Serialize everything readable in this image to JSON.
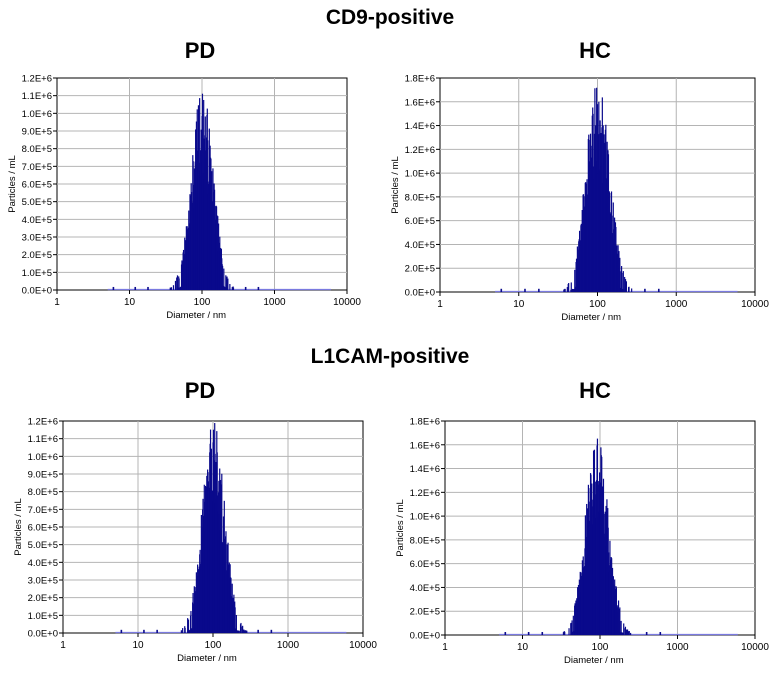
{
  "sections": [
    {
      "title": "CD9-positive"
    },
    {
      "title": "L1CAM-positive"
    }
  ],
  "colors": {
    "bar": "#0a0a8c",
    "grid": "#b4b4b4",
    "baseline": "#7a7ae0"
  },
  "chart_data": [
    {
      "type": "bar",
      "panel": "PD",
      "xlabel": "Diameter / nm",
      "ylabel": "Particles / mL",
      "xscale": "log",
      "xlim": [
        1,
        10000
      ],
      "xticks": [
        "1",
        "10",
        "100",
        "1000",
        "10000"
      ],
      "ylim": [
        0,
        1200000
      ],
      "yticks": [
        "0.0E+0",
        "1.0E+5",
        "2.0E+5",
        "3.0E+5",
        "4.0E+5",
        "5.0E+5",
        "6.0E+5",
        "7.0E+5",
        "8.0E+5",
        "9.0E+5",
        "1.0E+6",
        "1.1E+6",
        "1.2E+6"
      ],
      "grid": true,
      "distribution": {
        "peak_diameter_nm": 100,
        "peak_value": 1150000,
        "line_range_nm": [
          5,
          6000
        ]
      }
    },
    {
      "type": "bar",
      "panel": "HC",
      "xlabel": "Diameter / nm",
      "ylabel": "Particles / mL",
      "xscale": "log",
      "xlim": [
        1,
        10000
      ],
      "xticks": [
        "1",
        "10",
        "100",
        "1000",
        "10000"
      ],
      "ylim": [
        0,
        1800000
      ],
      "yticks": [
        "0.0E+0",
        "2.0E+5",
        "4.0E+5",
        "6.0E+5",
        "8.0E+5",
        "1.0E+6",
        "1.2E+6",
        "1.4E+6",
        "1.6E+6",
        "1.8E+6"
      ],
      "grid": true,
      "distribution": {
        "peak_diameter_nm": 100,
        "peak_value": 1800000,
        "line_range_nm": [
          5,
          6000
        ]
      }
    },
    {
      "type": "bar",
      "panel": "PD",
      "xlabel": "Diameter / nm",
      "ylabel": "Particles / mL",
      "xscale": "log",
      "xlim": [
        1,
        10000
      ],
      "xticks": [
        "1",
        "10",
        "100",
        "1000",
        "10000"
      ],
      "ylim": [
        0,
        1200000
      ],
      "yticks": [
        "0.0E+0",
        "1.0E+5",
        "2.0E+5",
        "3.0E+5",
        "4.0E+5",
        "5.0E+5",
        "6.0E+5",
        "7.0E+5",
        "8.0E+5",
        "9.0E+5",
        "1.0E+6",
        "1.1E+6",
        "1.2E+6"
      ],
      "grid": true,
      "distribution": {
        "peak_diameter_nm": 100,
        "peak_value": 1200000,
        "line_range_nm": [
          5,
          6000
        ]
      }
    },
    {
      "type": "bar",
      "panel": "HC",
      "xlabel": "Diameter / nm",
      "ylabel": "Particles / mL",
      "xscale": "log",
      "xlim": [
        1,
        10000
      ],
      "xticks": [
        "1",
        "10",
        "100",
        "1000",
        "10000"
      ],
      "ylim": [
        0,
        1800000
      ],
      "yticks": [
        "0.0E+0",
        "2.0E+5",
        "4.0E+5",
        "6.0E+5",
        "8.0E+5",
        "1.0E+6",
        "1.2E+6",
        "1.4E+6",
        "1.6E+6",
        "1.8E+6"
      ],
      "grid": true,
      "distribution": {
        "peak_diameter_nm": 90,
        "peak_value": 1680000,
        "line_range_nm": [
          5,
          6000
        ]
      }
    }
  ]
}
